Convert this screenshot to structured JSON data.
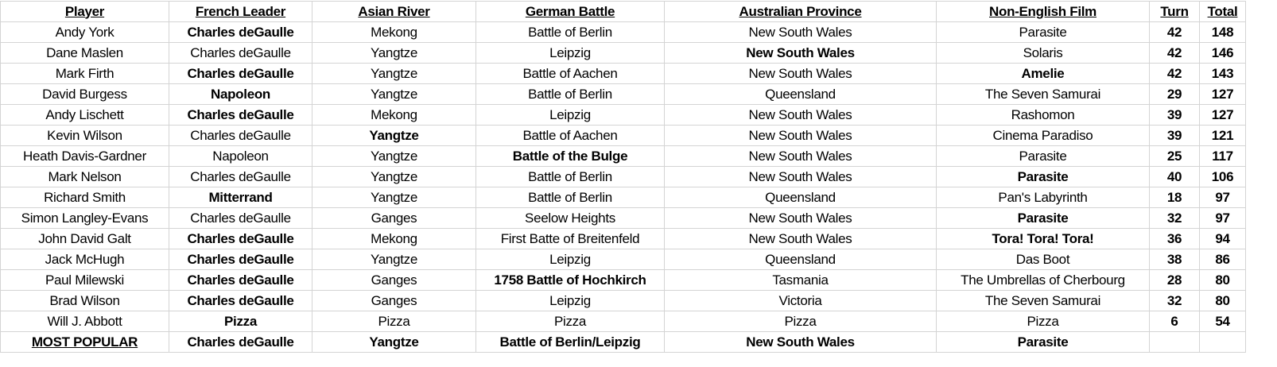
{
  "headers": [
    "Player",
    "French Leader",
    "Asian River",
    "German Battle",
    "Australian Province",
    "Non-English Film",
    "Turn",
    "Total"
  ],
  "rows": [
    {
      "cells": [
        "Andy York",
        "Charles deGaulle",
        "Mekong",
        "Battle of Berlin",
        "New South Wales",
        "Parasite",
        "42",
        "148"
      ],
      "bold": [
        false,
        true,
        false,
        false,
        false,
        false,
        true,
        true
      ]
    },
    {
      "cells": [
        "Dane Maslen",
        "Charles deGaulle",
        "Yangtze",
        "Leipzig",
        "New South Wales",
        "Solaris",
        "42",
        "146"
      ],
      "bold": [
        false,
        false,
        false,
        false,
        true,
        false,
        true,
        true
      ]
    },
    {
      "cells": [
        "Mark Firth",
        "Charles deGaulle",
        "Yangtze",
        "Battle of Aachen",
        "New South Wales",
        "Amelie",
        "42",
        "143"
      ],
      "bold": [
        false,
        true,
        false,
        false,
        false,
        true,
        true,
        true
      ]
    },
    {
      "cells": [
        "David Burgess",
        "Napoleon",
        "Yangtze",
        "Battle of Berlin",
        "Queensland",
        "The Seven Samurai",
        "29",
        "127"
      ],
      "bold": [
        false,
        true,
        false,
        false,
        false,
        false,
        true,
        true
      ]
    },
    {
      "cells": [
        "Andy Lischett",
        "Charles deGaulle",
        "Mekong",
        "Leipzig",
        "New South Wales",
        "Rashomon",
        "39",
        "127"
      ],
      "bold": [
        false,
        true,
        false,
        false,
        false,
        false,
        true,
        true
      ]
    },
    {
      "cells": [
        "Kevin Wilson",
        "Charles deGaulle",
        "Yangtze",
        "Battle of Aachen",
        "New South Wales",
        "Cinema Paradiso",
        "39",
        "121"
      ],
      "bold": [
        false,
        false,
        true,
        false,
        false,
        false,
        true,
        true
      ]
    },
    {
      "cells": [
        "Heath Davis-Gardner",
        "Napoleon",
        "Yangtze",
        "Battle of the Bulge",
        "New South Wales",
        "Parasite",
        "25",
        "117"
      ],
      "bold": [
        false,
        false,
        false,
        true,
        false,
        false,
        true,
        true
      ]
    },
    {
      "cells": [
        "Mark Nelson",
        "Charles deGaulle",
        "Yangtze",
        "Battle of Berlin",
        "New South Wales",
        "Parasite",
        "40",
        "106"
      ],
      "bold": [
        false,
        false,
        false,
        false,
        false,
        true,
        true,
        true
      ]
    },
    {
      "cells": [
        "Richard Smith",
        "Mitterrand",
        "Yangtze",
        "Battle of Berlin",
        "Queensland",
        "Pan's Labyrinth",
        "18",
        "97"
      ],
      "bold": [
        false,
        true,
        false,
        false,
        false,
        false,
        true,
        true
      ]
    },
    {
      "cells": [
        "Simon Langley-Evans",
        "Charles deGaulle",
        "Ganges",
        "Seelow Heights",
        "New South Wales",
        "Parasite",
        "32",
        "97"
      ],
      "bold": [
        false,
        false,
        false,
        false,
        false,
        true,
        true,
        true
      ]
    },
    {
      "cells": [
        "John David Galt",
        "Charles deGaulle",
        "Mekong",
        "First Batte of Breitenfeld",
        "New South Wales",
        "Tora! Tora! Tora!",
        "36",
        "94"
      ],
      "bold": [
        false,
        true,
        false,
        false,
        false,
        true,
        true,
        true
      ]
    },
    {
      "cells": [
        "Jack McHugh",
        "Charles deGaulle",
        "Yangtze",
        "Leipzig",
        "Queensland",
        "Das Boot",
        "38",
        "86"
      ],
      "bold": [
        false,
        true,
        false,
        false,
        false,
        false,
        true,
        true
      ]
    },
    {
      "cells": [
        "Paul Milewski",
        "Charles deGaulle",
        "Ganges",
        "1758 Battle of Hochkirch",
        "Tasmania",
        "The Umbrellas of Cherbourg",
        "28",
        "80"
      ],
      "bold": [
        false,
        true,
        false,
        true,
        false,
        false,
        true,
        true
      ]
    },
    {
      "cells": [
        "Brad Wilson",
        "Charles deGaulle",
        "Ganges",
        "Leipzig",
        "Victoria",
        "The Seven Samurai",
        "32",
        "80"
      ],
      "bold": [
        false,
        true,
        false,
        false,
        false,
        false,
        true,
        true
      ]
    },
    {
      "cells": [
        "Will J. Abbott",
        "Pizza",
        "Pizza",
        "Pizza",
        "Pizza",
        "Pizza",
        "6",
        "54"
      ],
      "bold": [
        false,
        true,
        false,
        false,
        false,
        false,
        true,
        true
      ]
    }
  ],
  "summary": {
    "cells": [
      "MOST POPULAR",
      "Charles deGaulle",
      "Yangtze",
      "Battle of Berlin/Leipzig",
      "New South Wales",
      "Parasite",
      "",
      ""
    ]
  }
}
